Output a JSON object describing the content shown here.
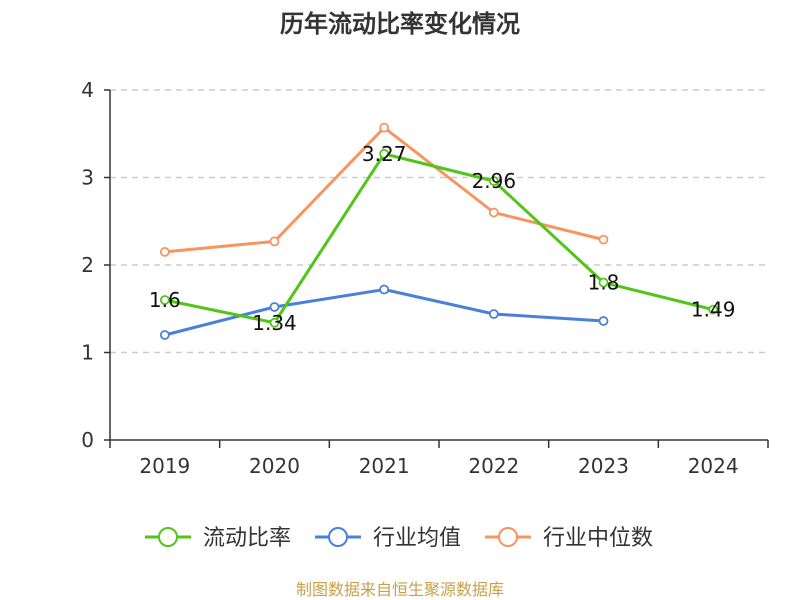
{
  "chart_data": {
    "type": "line",
    "title": "历年流动比率变化情况",
    "categories": [
      "2019",
      "2020",
      "2021",
      "2022",
      "2023",
      "2024"
    ],
    "ylim": [
      0,
      4
    ],
    "yticks": [
      "0",
      "1",
      "2",
      "3",
      "4"
    ],
    "grid": "horizontal-dashed",
    "legend": "bottom",
    "series": [
      {
        "name": "流动比率",
        "color": "#52c41a",
        "values": [
          1.6,
          1.34,
          3.27,
          2.96,
          1.8,
          1.49
        ],
        "labels": [
          "1.6",
          "1.34",
          "3.27",
          "2.96",
          "1.8",
          "1.49"
        ]
      },
      {
        "name": "行业均值",
        "color": "#4a7fdb",
        "values": [
          1.2,
          1.52,
          1.72,
          1.44,
          1.36,
          null
        ]
      },
      {
        "name": "行业中位数",
        "color": "#f7945f",
        "values": [
          2.15,
          2.27,
          3.57,
          2.6,
          2.29,
          null
        ]
      }
    ]
  },
  "footer": {
    "source": "制图数据来自恒生聚源数据库"
  }
}
